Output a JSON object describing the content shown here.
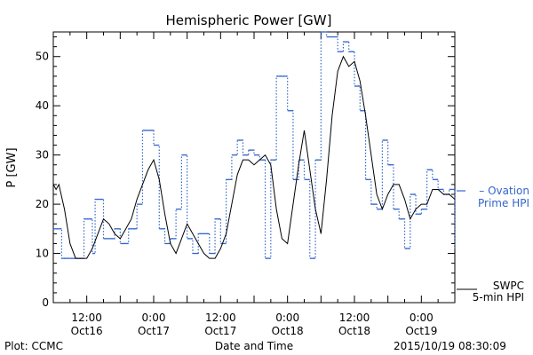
{
  "chart_data": {
    "type": "line",
    "title": "Hemispheric Power [GW]",
    "xlabel": "Date and Time",
    "ylabel": "P [GW]",
    "ylim": [
      0,
      55
    ],
    "xlim": [
      0,
      72
    ],
    "grid": false,
    "x_ticks": [
      {
        "x": 6,
        "time": "12:00",
        "date": "Oct16"
      },
      {
        "x": 18,
        "time": "0:00",
        "date": "Oct17"
      },
      {
        "x": 30,
        "time": "12:00",
        "date": "Oct17"
      },
      {
        "x": 42,
        "time": "0:00",
        "date": "Oct18"
      },
      {
        "x": 54,
        "time": "12:00",
        "date": "Oct18"
      },
      {
        "x": 66,
        "time": "0:00",
        "date": "Oct19"
      }
    ],
    "y_ticks": [
      0,
      10,
      20,
      30,
      40,
      50
    ],
    "series": [
      {
        "name": "Ovation Prime HPI",
        "label_lines": [
          "Ovation",
          "Prime HPI"
        ],
        "color": "#3366cc",
        "style": "dotted-steps",
        "points": [
          [
            0,
            15
          ],
          [
            1.5,
            9
          ],
          [
            3,
            9
          ],
          [
            5.5,
            17
          ],
          [
            7,
            10
          ],
          [
            7.5,
            21
          ],
          [
            9,
            13
          ],
          [
            11,
            15
          ],
          [
            12,
            12
          ],
          [
            13.5,
            15
          ],
          [
            15,
            20
          ],
          [
            16,
            35
          ],
          [
            18,
            32
          ],
          [
            19,
            15
          ],
          [
            20,
            12
          ],
          [
            21,
            13
          ],
          [
            22,
            19
          ],
          [
            23,
            30
          ],
          [
            24,
            13
          ],
          [
            25,
            10
          ],
          [
            26,
            14
          ],
          [
            28,
            10
          ],
          [
            29,
            17
          ],
          [
            30,
            12
          ],
          [
            31,
            25
          ],
          [
            32,
            30
          ],
          [
            33,
            33
          ],
          [
            34,
            30
          ],
          [
            35,
            31
          ],
          [
            36,
            30
          ],
          [
            37,
            29
          ],
          [
            38,
            9
          ],
          [
            39,
            29
          ],
          [
            40,
            46
          ],
          [
            42,
            39
          ],
          [
            43,
            25
          ],
          [
            44,
            29
          ],
          [
            45,
            25
          ],
          [
            46,
            9
          ],
          [
            47,
            29
          ],
          [
            48,
            55
          ],
          [
            49,
            54
          ],
          [
            50,
            54
          ],
          [
            51,
            51
          ],
          [
            52,
            53
          ],
          [
            53,
            51
          ],
          [
            54,
            44
          ],
          [
            55,
            39
          ],
          [
            56,
            25
          ],
          [
            57,
            20
          ],
          [
            58,
            19
          ],
          [
            59,
            33
          ],
          [
            60,
            28
          ],
          [
            61,
            19
          ],
          [
            62,
            17
          ],
          [
            63,
            11
          ],
          [
            64,
            22
          ],
          [
            65,
            18
          ],
          [
            66,
            19
          ],
          [
            67,
            27
          ],
          [
            68,
            25
          ],
          [
            69,
            23
          ],
          [
            70,
            22
          ],
          [
            71,
            23
          ],
          [
            72,
            11
          ]
        ]
      },
      {
        "name": "SWPC 5-min HPI",
        "label_lines": [
          "SWPC",
          "5-min HPI"
        ],
        "color": "#000000",
        "style": "solid",
        "points": [
          [
            0,
            24
          ],
          [
            0.5,
            23
          ],
          [
            1,
            24
          ],
          [
            2,
            19
          ],
          [
            3,
            12
          ],
          [
            4,
            9
          ],
          [
            5,
            9
          ],
          [
            6,
            9
          ],
          [
            7,
            11
          ],
          [
            8,
            14
          ],
          [
            9,
            17
          ],
          [
            10,
            16
          ],
          [
            11,
            14
          ],
          [
            12,
            13
          ],
          [
            13,
            15
          ],
          [
            14,
            17
          ],
          [
            15,
            21
          ],
          [
            16,
            24
          ],
          [
            17,
            27
          ],
          [
            18,
            29
          ],
          [
            19,
            25
          ],
          [
            20,
            18
          ],
          [
            21,
            12
          ],
          [
            22,
            10
          ],
          [
            23,
            13
          ],
          [
            24,
            16
          ],
          [
            25,
            14
          ],
          [
            26,
            12
          ],
          [
            27,
            10
          ],
          [
            28,
            9
          ],
          [
            29,
            9
          ],
          [
            30,
            11
          ],
          [
            31,
            14
          ],
          [
            32,
            20
          ],
          [
            33,
            26
          ],
          [
            34,
            29
          ],
          [
            35,
            29
          ],
          [
            36,
            28
          ],
          [
            37,
            29
          ],
          [
            38,
            30
          ],
          [
            39,
            28
          ],
          [
            40,
            19
          ],
          [
            41,
            13
          ],
          [
            42,
            12
          ],
          [
            43,
            20
          ],
          [
            44,
            28
          ],
          [
            45,
            35
          ],
          [
            46,
            27
          ],
          [
            47,
            19
          ],
          [
            48,
            14
          ],
          [
            49,
            25
          ],
          [
            50,
            38
          ],
          [
            51,
            47
          ],
          [
            52,
            50
          ],
          [
            53,
            48
          ],
          [
            54,
            49
          ],
          [
            55,
            45
          ],
          [
            56,
            38
          ],
          [
            57,
            30
          ],
          [
            58,
            22
          ],
          [
            59,
            19
          ],
          [
            60,
            22
          ],
          [
            61,
            24
          ],
          [
            62,
            24
          ],
          [
            63,
            21
          ],
          [
            64,
            17
          ],
          [
            65,
            19
          ],
          [
            66,
            20
          ],
          [
            67,
            20
          ],
          [
            68,
            23
          ],
          [
            69,
            23
          ],
          [
            70,
            22
          ],
          [
            71,
            22
          ],
          [
            72,
            21
          ]
        ]
      }
    ]
  },
  "footer": {
    "plot_credit": "Plot: CCMC",
    "timestamp": "2015/10/19 08:30:09"
  }
}
